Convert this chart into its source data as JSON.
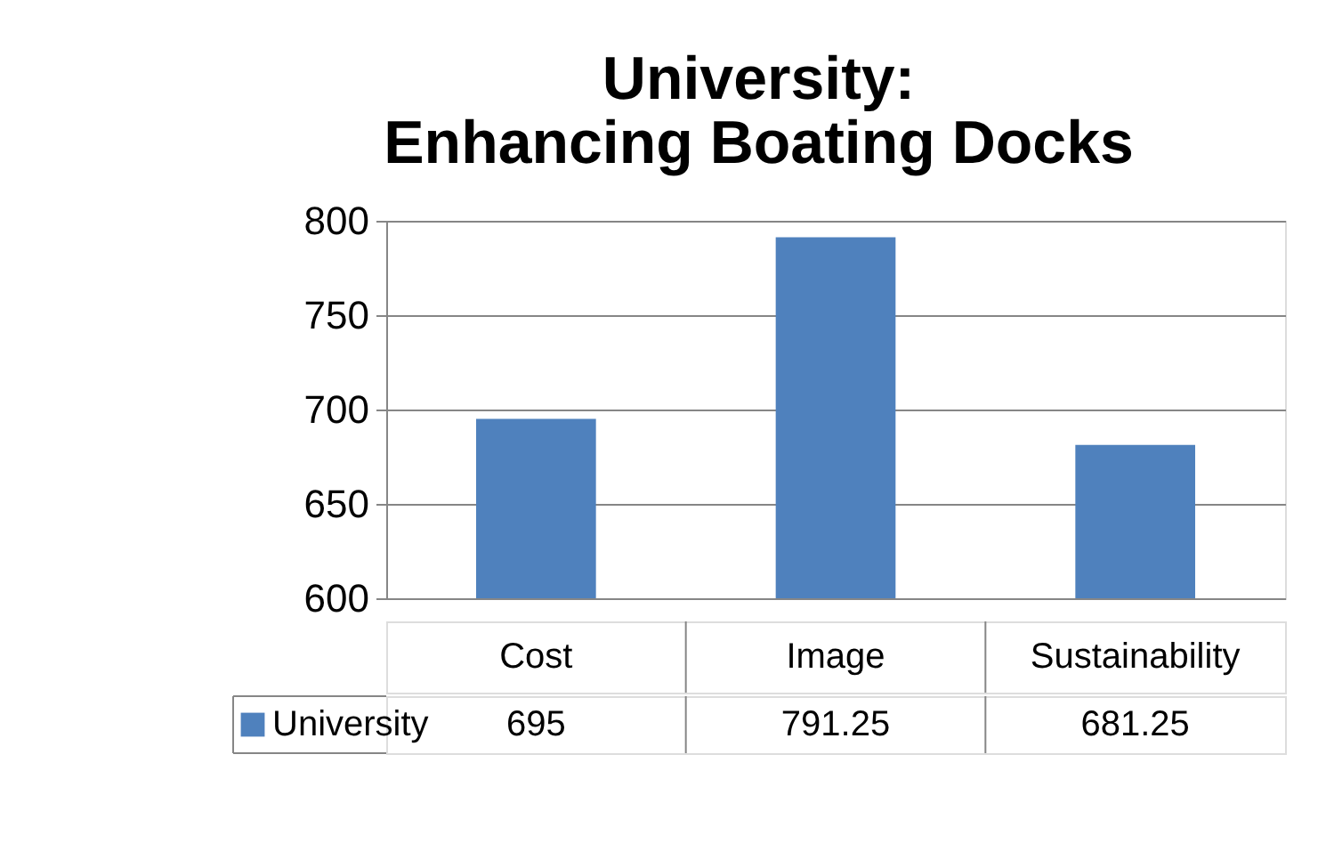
{
  "chart_data": {
    "type": "bar",
    "title": [
      "University:",
      "Enhancing Boating Docks"
    ],
    "categories": [
      "Cost",
      "Image",
      "Sustainability"
    ],
    "series": [
      {
        "name": "University",
        "color": "#4f81bd",
        "values": [
          695,
          791.25,
          681.25
        ]
      }
    ],
    "ylim": [
      600,
      800
    ],
    "yticks": [
      600,
      650,
      700,
      750,
      800
    ],
    "grid": "y",
    "legend": "bottom",
    "data_labels": true
  }
}
